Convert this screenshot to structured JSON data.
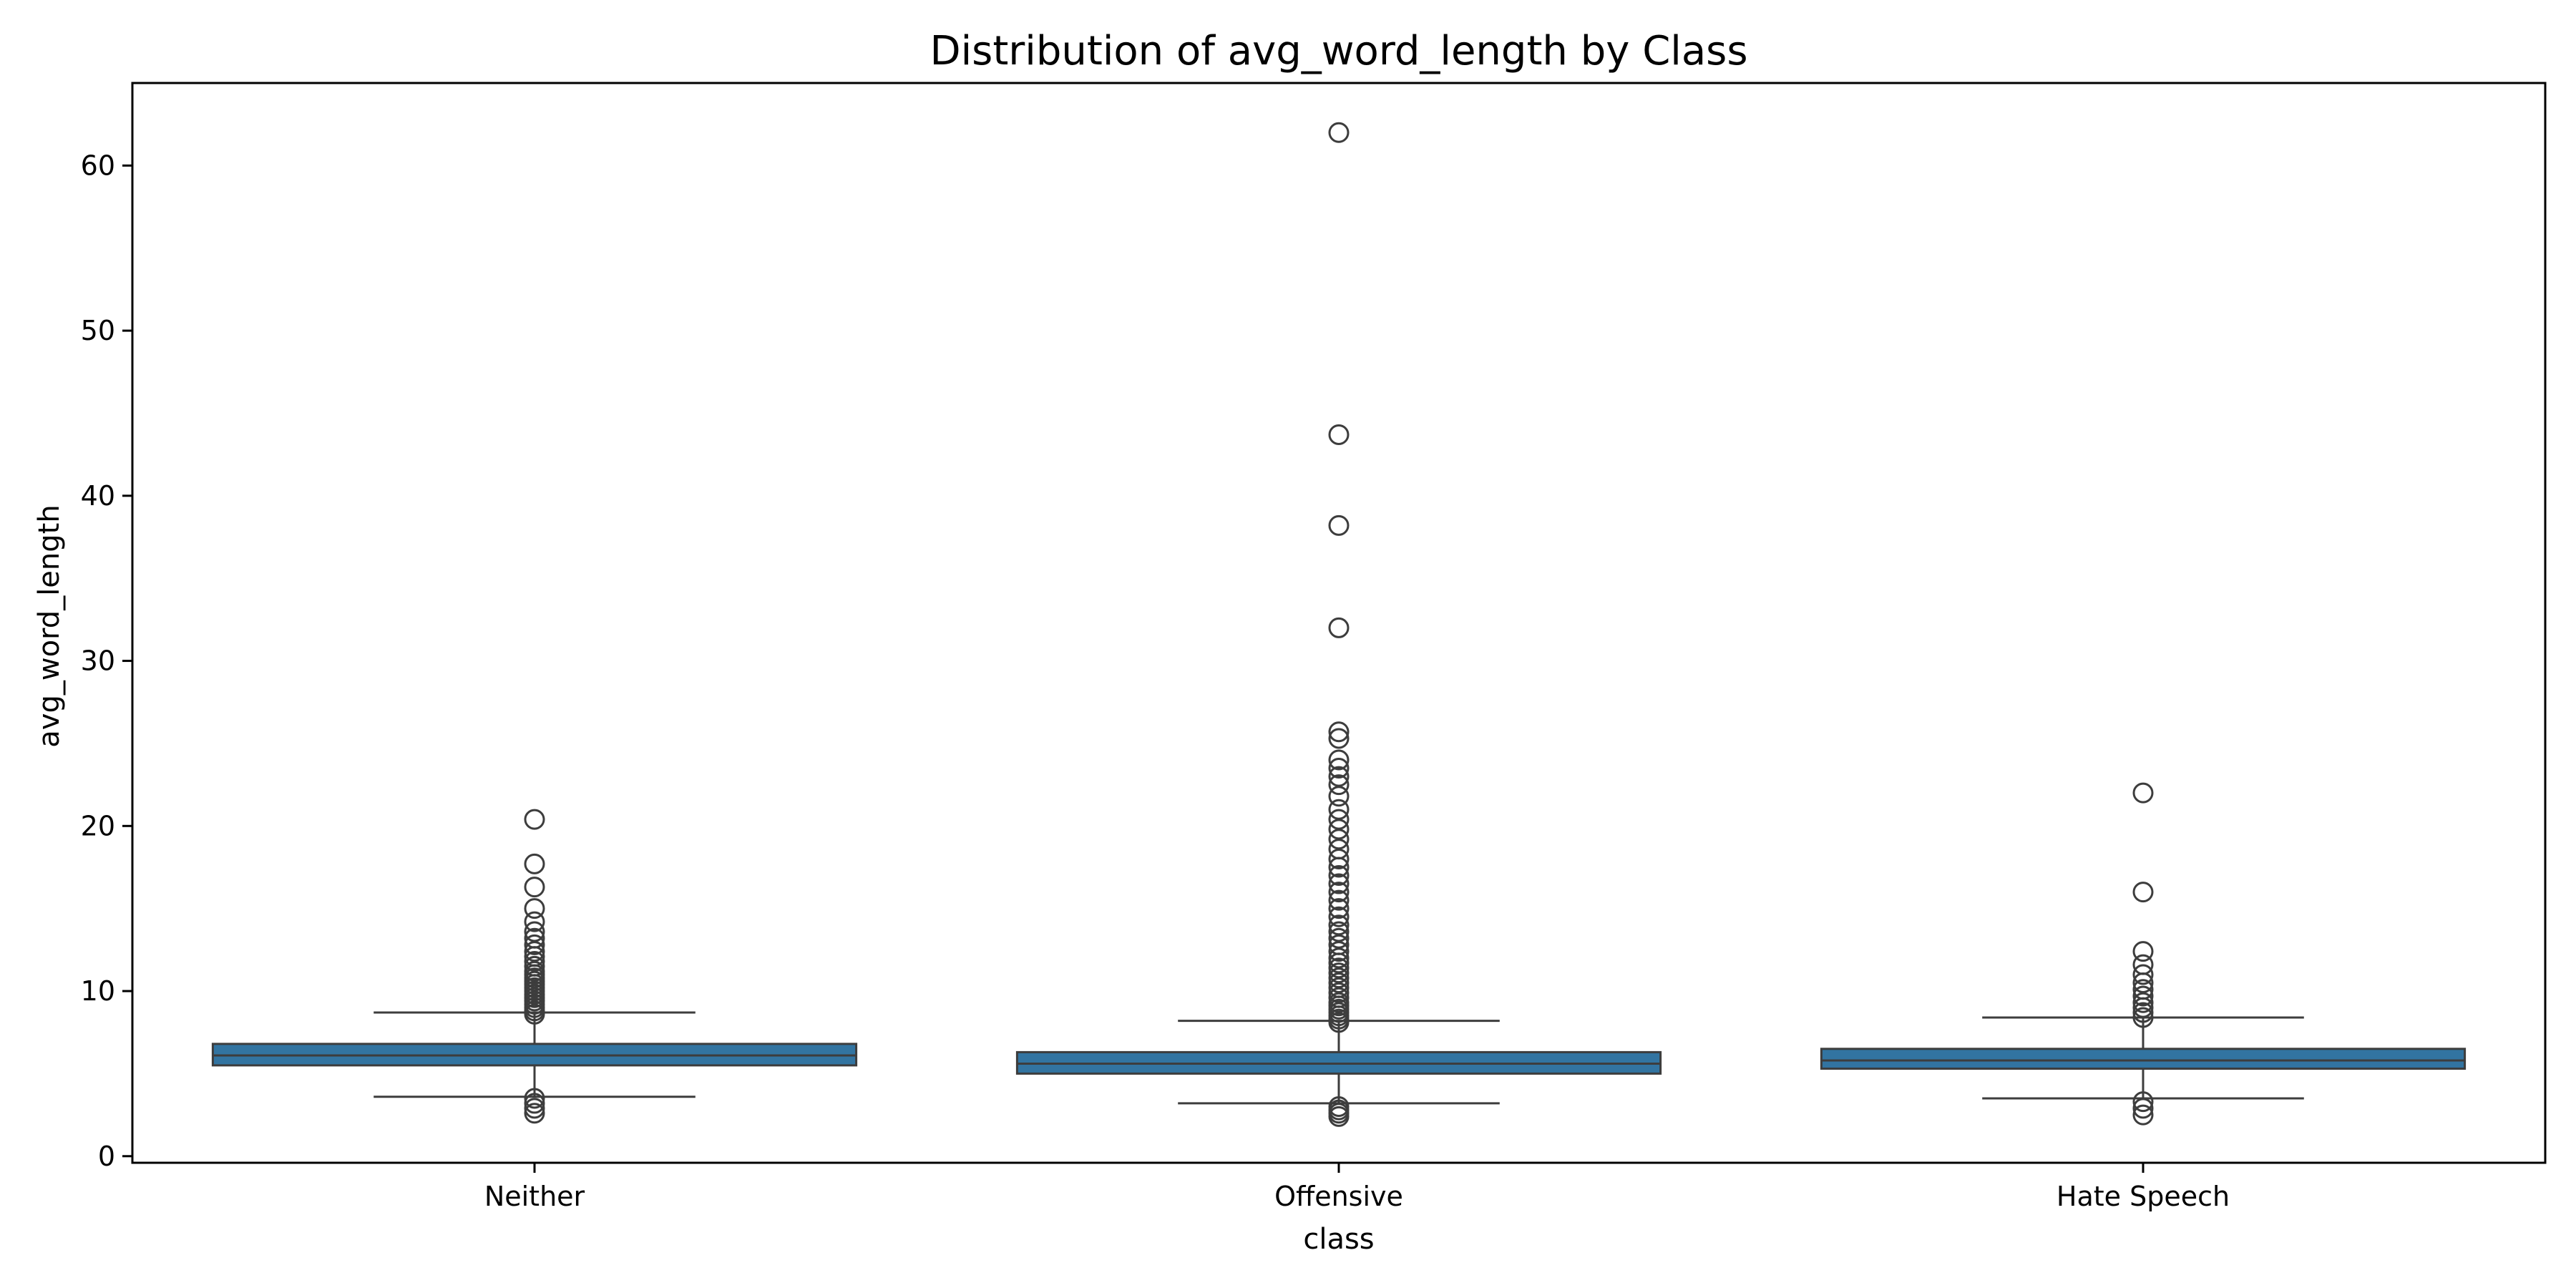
{
  "chart_data": {
    "type": "box",
    "title": "Distribution of avg_word_length by Class",
    "xlabel": "class",
    "ylabel": "avg_word_length",
    "ylim": [
      -0.4,
      65
    ],
    "yticks": [
      0,
      10,
      20,
      30,
      40,
      50,
      60
    ],
    "categories": [
      "Neither",
      "Offensive",
      "Hate Speech"
    ],
    "grid": false,
    "box_color": "#3274a1",
    "edge_color": "#3d3d3d",
    "boxes": [
      {
        "category": "Neither",
        "whisker_low": 3.6,
        "q1": 5.5,
        "median": 6.1,
        "q3": 6.8,
        "whisker_high": 8.7,
        "outliers": [
          2.6,
          2.9,
          3.2,
          3.5,
          8.6,
          8.8,
          9.0,
          9.2,
          9.4,
          9.6,
          9.8,
          10.0,
          10.2,
          10.4,
          10.6,
          10.8,
          11.0,
          11.2,
          11.5,
          11.8,
          12.1,
          12.4,
          12.8,
          13.2,
          13.6,
          14.2,
          15.0,
          16.3,
          17.7,
          20.4
        ]
      },
      {
        "category": "Offensive",
        "whisker_low": 3.2,
        "q1": 5.0,
        "median": 5.6,
        "q3": 6.3,
        "whisker_high": 8.2,
        "outliers": [
          2.4,
          2.6,
          2.8,
          3.0,
          8.1,
          8.3,
          8.5,
          8.7,
          8.9,
          9.1,
          9.3,
          9.6,
          9.9,
          10.2,
          10.5,
          10.8,
          11.1,
          11.4,
          11.7,
          12.0,
          12.4,
          12.8,
          13.2,
          13.6,
          14.0,
          14.5,
          15.0,
          15.5,
          16.0,
          16.5,
          17.0,
          17.5,
          18.0,
          18.6,
          19.2,
          19.8,
          20.4,
          21.0,
          21.8,
          22.5,
          23.0,
          23.5,
          24.0,
          25.3,
          25.7,
          32.0,
          38.2,
          43.7,
          62.0
        ]
      },
      {
        "category": "Hate Speech",
        "whisker_low": 3.5,
        "q1": 5.3,
        "median": 5.8,
        "q3": 6.5,
        "whisker_high": 8.4,
        "outliers": [
          2.5,
          2.9,
          3.3,
          8.4,
          8.7,
          9.0,
          9.3,
          9.7,
          10.1,
          10.5,
          11.0,
          11.6,
          12.4,
          16.0,
          22.0
        ]
      }
    ]
  }
}
